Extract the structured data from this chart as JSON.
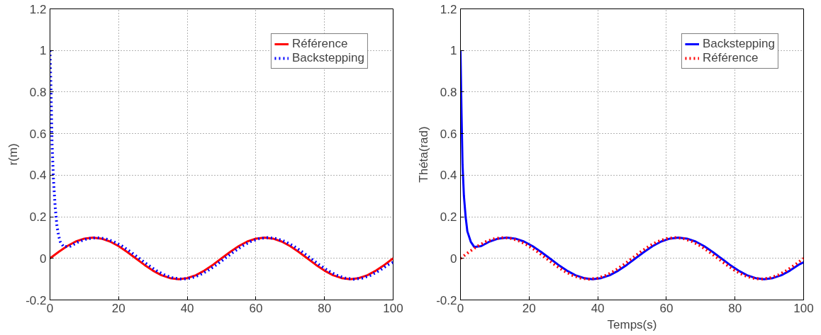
{
  "chart_data": [
    {
      "type": "line",
      "ylabel": "r(m)",
      "xlim": [
        0,
        100
      ],
      "ylim": [
        -0.2,
        1.2
      ],
      "xticks": [
        0,
        20,
        40,
        60,
        80,
        100
      ],
      "yticks": [
        -0.2,
        0,
        0.2,
        0.4,
        0.6,
        0.8,
        1,
        1.2
      ],
      "grid": true,
      "legend": "top right",
      "series": [
        {
          "name": "Référence",
          "color": "#ff0000",
          "line_style": "solid",
          "x": [
            0,
            2.5,
            5,
            7.5,
            10,
            12.5,
            15,
            17.5,
            20,
            22.5,
            25,
            27.5,
            30,
            32.5,
            35,
            37.5,
            40,
            42.5,
            45,
            47.5,
            50,
            52.5,
            55,
            57.5,
            60,
            62.5,
            65,
            67.5,
            70,
            72.5,
            75,
            77.5,
            80,
            82.5,
            85,
            87.5,
            90,
            92.5,
            95,
            97.5,
            100
          ],
          "values": [
            0,
            0.031,
            0.059,
            0.081,
            0.095,
            0.1,
            0.095,
            0.081,
            0.059,
            0.031,
            0,
            -0.031,
            -0.059,
            -0.081,
            -0.095,
            -0.1,
            -0.095,
            -0.081,
            -0.059,
            -0.031,
            0,
            0.031,
            0.059,
            0.081,
            0.095,
            0.1,
            0.095,
            0.081,
            0.059,
            0.031,
            0,
            -0.031,
            -0.059,
            -0.081,
            -0.095,
            -0.1,
            -0.095,
            -0.081,
            -0.059,
            -0.031,
            0
          ]
        },
        {
          "name": "Backstepping",
          "color": "#0000ff",
          "line_style": "dotted",
          "x": [
            0,
            0.3,
            0.6,
            1,
            1.5,
            2,
            2.5,
            3,
            4,
            6,
            8.5,
            11,
            13.5,
            16,
            18.5,
            21,
            23.5,
            26,
            28.5,
            31,
            33.5,
            36,
            38.5,
            41,
            43.5,
            46,
            48.5,
            51,
            53.5,
            56,
            58.5,
            61,
            63.5,
            66,
            68.5,
            71,
            73.5,
            76,
            78.5,
            81,
            83.5,
            86,
            88.5,
            91,
            93.5,
            96,
            98.5,
            100
          ],
          "values": [
            1,
            0.8,
            0.55,
            0.38,
            0.25,
            0.16,
            0.11,
            0.08,
            0.055,
            0.059,
            0.081,
            0.095,
            0.1,
            0.095,
            0.081,
            0.059,
            0.031,
            0,
            -0.031,
            -0.059,
            -0.081,
            -0.095,
            -0.1,
            -0.095,
            -0.081,
            -0.059,
            -0.031,
            0,
            0.031,
            0.059,
            0.081,
            0.095,
            0.1,
            0.095,
            0.081,
            0.059,
            0.031,
            0,
            -0.031,
            -0.059,
            -0.081,
            -0.095,
            -0.1,
            -0.095,
            -0.081,
            -0.059,
            -0.031,
            -0.019
          ]
        }
      ]
    },
    {
      "type": "line",
      "xlabel": "Temps(s)",
      "ylabel": "Théta(rad)",
      "xlim": [
        0,
        100
      ],
      "ylim": [
        -0.2,
        1.2
      ],
      "xticks": [
        0,
        20,
        40,
        60,
        80,
        100
      ],
      "yticks": [
        -0.2,
        0,
        0.2,
        0.4,
        0.6,
        0.8,
        1,
        1.2
      ],
      "grid": true,
      "legend": "top right",
      "series": [
        {
          "name": "Backstepping",
          "color": "#0000ff",
          "line_style": "solid",
          "x": [
            0,
            0.3,
            0.6,
            1,
            1.5,
            2,
            3,
            4,
            6,
            8.5,
            11,
            13.5,
            16,
            18.5,
            21,
            23.5,
            26,
            28.5,
            31,
            33.5,
            36,
            38.5,
            41,
            43.5,
            46,
            48.5,
            51,
            53.5,
            56,
            58.5,
            61,
            63.5,
            66,
            68.5,
            71,
            73.5,
            76,
            78.5,
            81,
            83.5,
            86,
            88.5,
            91,
            93.5,
            96,
            98.5,
            100
          ],
          "values": [
            1,
            0.7,
            0.45,
            0.3,
            0.2,
            0.13,
            0.08,
            0.055,
            0.059,
            0.081,
            0.095,
            0.1,
            0.095,
            0.081,
            0.059,
            0.031,
            0,
            -0.031,
            -0.059,
            -0.081,
            -0.095,
            -0.1,
            -0.095,
            -0.081,
            -0.059,
            -0.031,
            0,
            0.031,
            0.059,
            0.081,
            0.095,
            0.1,
            0.095,
            0.081,
            0.059,
            0.031,
            0,
            -0.031,
            -0.059,
            -0.081,
            -0.095,
            -0.1,
            -0.095,
            -0.081,
            -0.059,
            -0.031,
            -0.019
          ]
        },
        {
          "name": "Référence",
          "color": "#ff0000",
          "line_style": "dotted",
          "x": [
            0,
            2.5,
            5,
            7.5,
            10,
            12.5,
            15,
            17.5,
            20,
            22.5,
            25,
            27.5,
            30,
            32.5,
            35,
            37.5,
            40,
            42.5,
            45,
            47.5,
            50,
            52.5,
            55,
            57.5,
            60,
            62.5,
            65,
            67.5,
            70,
            72.5,
            75,
            77.5,
            80,
            82.5,
            85,
            87.5,
            90,
            92.5,
            95,
            97.5,
            100
          ],
          "values": [
            0,
            0.031,
            0.059,
            0.081,
            0.095,
            0.1,
            0.095,
            0.081,
            0.059,
            0.031,
            0,
            -0.031,
            -0.059,
            -0.081,
            -0.095,
            -0.1,
            -0.095,
            -0.081,
            -0.059,
            -0.031,
            0,
            0.031,
            0.059,
            0.081,
            0.095,
            0.1,
            0.095,
            0.081,
            0.059,
            0.031,
            0,
            -0.031,
            -0.059,
            -0.081,
            -0.095,
            -0.1,
            -0.095,
            -0.081,
            -0.059,
            -0.031,
            0
          ]
        }
      ]
    }
  ]
}
